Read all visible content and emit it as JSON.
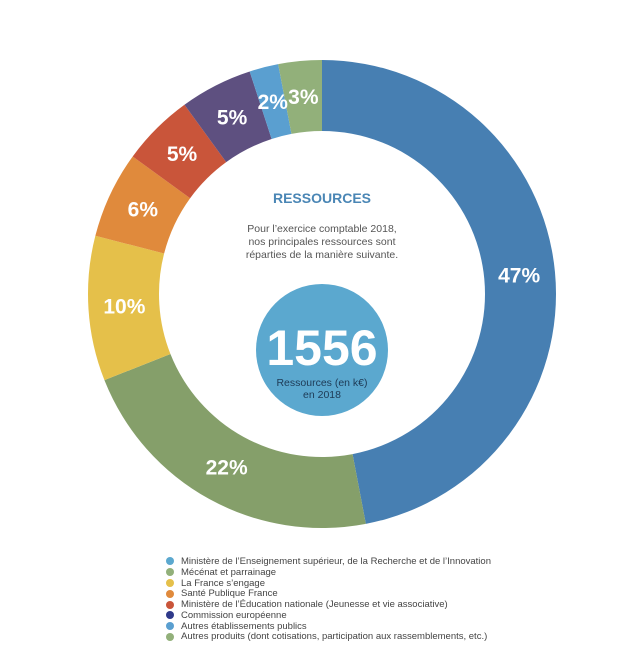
{
  "center": {
    "heading": "RESSOURCES",
    "intro_lines": [
      "Pour l’exercice comptable 2018,",
      "nos principales ressources sont",
      "réparties de la manière suivante."
    ],
    "total": "1556",
    "total_caption_lines": [
      "Ressources (en k€)",
      "en 2018"
    ],
    "circle_color": "#5ba8cf"
  },
  "chart_data": {
    "type": "pie",
    "donut": true,
    "start_angle_deg": 0,
    "direction": "clockwise",
    "slices": [
      {
        "label": "Ministère de l’Enseignement supérieur, de la Recherche et de l’Innovation",
        "value": 47,
        "value_label": "47%",
        "color": "#477fb2"
      },
      {
        "label": "Mécénat et parrainage",
        "value": 22,
        "value_label": "22%",
        "color": "#859f6a"
      },
      {
        "label": "La France s’engage",
        "value": 10,
        "value_label": "10%",
        "color": "#e5c04a"
      },
      {
        "label": "Santé Publique France",
        "value": 6,
        "value_label": "6%",
        "color": "#e08a3c"
      },
      {
        "label": "Ministère de l’Éducation nationale (Jeunesse et vie associative)",
        "value": 5,
        "value_label": "5%",
        "color": "#c9553a"
      },
      {
        "label": "Commission européenne",
        "value": 5,
        "value_label": "5%",
        "color": "#5e5080"
      },
      {
        "label": "Autres établissements publics",
        "value": 2,
        "value_label": "2%",
        "color": "#5a9fd0"
      },
      {
        "label": "Autres produits (dont cotisations, participation aux rassemblements, etc.)",
        "value": 3,
        "value_label": "3%",
        "color": "#92b07a"
      }
    ],
    "legend_position": "bottom"
  },
  "legend_colors": [
    "#5ba8cf",
    "#92b07a",
    "#e5c04a",
    "#e08a3c",
    "#c9553a",
    "#2f3a8a",
    "#5a9fd0",
    "#92b07a"
  ]
}
